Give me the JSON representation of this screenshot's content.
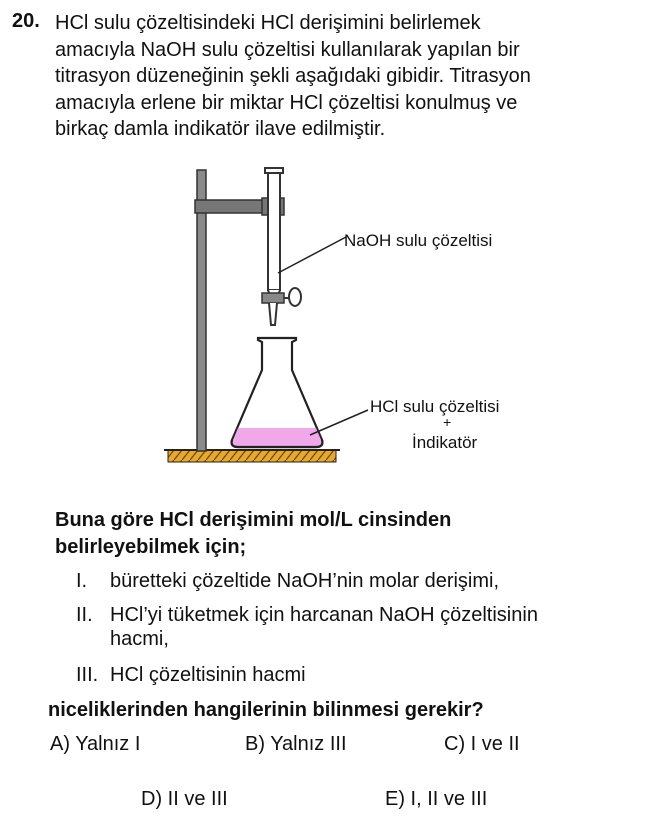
{
  "question": {
    "number": "20.",
    "stem_lines": [
      "HCl sulu çözeltisindeki HCl derişimini belirlemek",
      "amacıyla NaOH sulu çözeltisi kullanılarak yapılan bir",
      "titrasyon düzeneğinin şekli aşağıdaki gibidir. Titrasyon",
      "amacıyla erlene bir miktar HCl çözeltisi konulmuş ve",
      "birkaç damla indikatör ilave edilmiştir."
    ]
  },
  "figure": {
    "burette_label": "NaOH sulu çözeltisi",
    "flask_label_line1": "HCl sulu çözeltisi",
    "flask_label_plus": "+",
    "flask_label_line2": "İndikatör",
    "colors": {
      "solution": "#f1a8ea",
      "base": "#e8a82a",
      "stand": "#777777"
    }
  },
  "prompt_lines": [
    "Buna göre HCl derişimini mol/L cinsinden",
    "belirleyebilmek için;"
  ],
  "items": [
    {
      "numeral": "I.",
      "lines": [
        "bürettеki çözeltide NaOH’nin molar derişimi,"
      ]
    },
    {
      "numeral": "II.",
      "lines": [
        "HCl’yi tüketmek için harcanan NaOH çözeltisinin",
        "hacmi,"
      ]
    },
    {
      "numeral": "III.",
      "lines": [
        "HCl çözeltisinin hacmi"
      ]
    }
  ],
  "closing": "niceliklerinden hangilerinin bilinmesi gerekir?",
  "options": {
    "A": "A) Yalnız I",
    "B": "B) Yalnız III",
    "C": "C) I ve II",
    "D": "D) II ve III",
    "E": "E) I, II ve III"
  }
}
